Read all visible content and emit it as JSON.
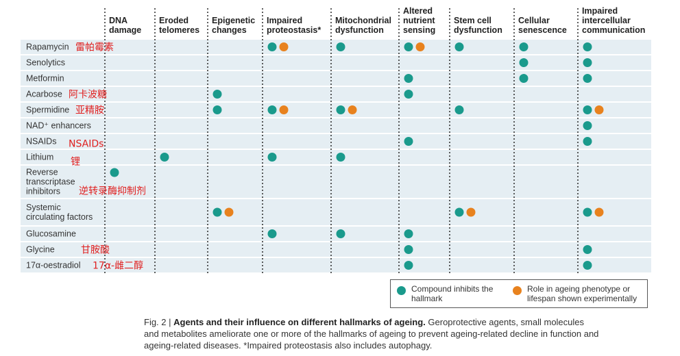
{
  "chart_data": {
    "type": "table",
    "columns": [
      [
        "DNA",
        "damage"
      ],
      [
        "Eroded",
        "telomeres"
      ],
      [
        "Epigenetic",
        "changes"
      ],
      [
        "Impaired",
        "proteostasis*"
      ],
      [
        "Mitochondrial",
        "dysfunction"
      ],
      [
        "Altered",
        "nutrient",
        "sensing"
      ],
      [
        "Stem cell",
        "dysfunction"
      ],
      [
        "Cellular",
        "senescence"
      ],
      [
        "Impaired",
        "intercellular",
        "communication"
      ]
    ],
    "rows": [
      {
        "label": [
          "Rapamycin"
        ],
        "annotation": "雷帕霉素",
        "cells": [
          [],
          [],
          [],
          [
            "inhibits",
            "role"
          ],
          [
            "inhibits"
          ],
          [
            "inhibits",
            "role"
          ],
          [
            "inhibits"
          ],
          [
            "inhibits"
          ],
          [
            "inhibits"
          ]
        ]
      },
      {
        "label": [
          "Senolytics"
        ],
        "annotation": "",
        "cells": [
          [],
          [],
          [],
          [],
          [],
          [],
          [],
          [
            "inhibits"
          ],
          [
            "inhibits"
          ]
        ]
      },
      {
        "label": [
          "Metformin"
        ],
        "annotation": "",
        "cells": [
          [],
          [],
          [],
          [],
          [],
          [
            "inhibits"
          ],
          [],
          [
            "inhibits"
          ],
          [
            "inhibits"
          ]
        ]
      },
      {
        "label": [
          "Acarbose"
        ],
        "annotation": "阿卡波糖",
        "cells": [
          [],
          [],
          [
            "inhibits"
          ],
          [],
          [],
          [
            "inhibits"
          ],
          [],
          [],
          []
        ]
      },
      {
        "label": [
          "Spermidine"
        ],
        "annotation": "亚精胺",
        "cells": [
          [],
          [],
          [
            "inhibits"
          ],
          [
            "inhibits",
            "role"
          ],
          [
            "inhibits",
            "role"
          ],
          [],
          [
            "inhibits"
          ],
          [],
          [
            "inhibits",
            "role"
          ]
        ]
      },
      {
        "label": [
          "NAD⁺ enhancers"
        ],
        "annotation": "",
        "cells": [
          [],
          [],
          [],
          [],
          [],
          [],
          [],
          [],
          [
            "inhibits"
          ]
        ]
      },
      {
        "label": [
          "NSAIDs"
        ],
        "annotation": "NSAIDs",
        "cells": [
          [],
          [],
          [],
          [],
          [],
          [
            "inhibits"
          ],
          [],
          [],
          [
            "inhibits"
          ]
        ]
      },
      {
        "label": [
          "Lithium"
        ],
        "annotation": "锂",
        "cells": [
          [],
          [
            "inhibits"
          ],
          [],
          [
            "inhibits"
          ],
          [
            "inhibits"
          ],
          [],
          [],
          [],
          []
        ]
      },
      {
        "label": [
          "Reverse",
          "transcriptase",
          "inhibitors"
        ],
        "annotation": "逆转录酶抑制剂",
        "cells": [
          [
            "inhibits"
          ],
          [],
          [],
          [],
          [],
          [],
          [],
          [],
          []
        ]
      },
      {
        "label": [
          "Systemic",
          "circulating factors"
        ],
        "annotation": "",
        "cells": [
          [],
          [],
          [
            "inhibits",
            "role"
          ],
          [],
          [],
          [],
          [
            "inhibits",
            "role"
          ],
          [],
          [
            "inhibits",
            "role"
          ]
        ]
      },
      {
        "label": [
          "Glucosamine"
        ],
        "annotation": "",
        "cells": [
          [],
          [],
          [],
          [
            "inhibits"
          ],
          [
            "inhibits"
          ],
          [
            "inhibits"
          ],
          [],
          [],
          []
        ]
      },
      {
        "label": [
          "Glycine"
        ],
        "annotation": "甘胺酸",
        "cells": [
          [],
          [],
          [],
          [],
          [],
          [
            "inhibits"
          ],
          [],
          [],
          [
            "inhibits"
          ]
        ]
      },
      {
        "label": [
          "17α-oestradiol"
        ],
        "annotation": "17α-雌二醇",
        "cells": [
          [],
          [],
          [],
          [],
          [],
          [
            "inhibits"
          ],
          [],
          [],
          [
            "inhibits"
          ]
        ]
      }
    ],
    "legend": [
      {
        "key": "inhibits",
        "label": "Compound inhibits the hallmark",
        "color": "#1a9a8c"
      },
      {
        "key": "role",
        "label": "Role in ageing phenotype or lifespan shown experimentally",
        "color": "#e8821e"
      }
    ],
    "legend_placement": "bottom-right"
  },
  "colors": {
    "inhibits": "#1a9a8c",
    "role": "#e8821e",
    "row_band": "#e5eef3",
    "annotation": "#e02020",
    "divider": "#333333"
  },
  "caption": {
    "fig_label": "Fig. 2 | ",
    "title": "Agents and their influence on different hallmarks of ageing.",
    "line1_rest": " Geroprotective agents, small molecules",
    "line2": "and metabolites ameliorate one or more of the hallmarks of ageing to prevent ageing-related decline in function and",
    "line3": "ageing-related diseases. *Impaired proteostasis also includes autophagy."
  },
  "legend_text": {
    "inhibits": "Compound inhibits the hallmark",
    "role": "Role in ageing phenotype or lifespan shown experimentally"
  }
}
